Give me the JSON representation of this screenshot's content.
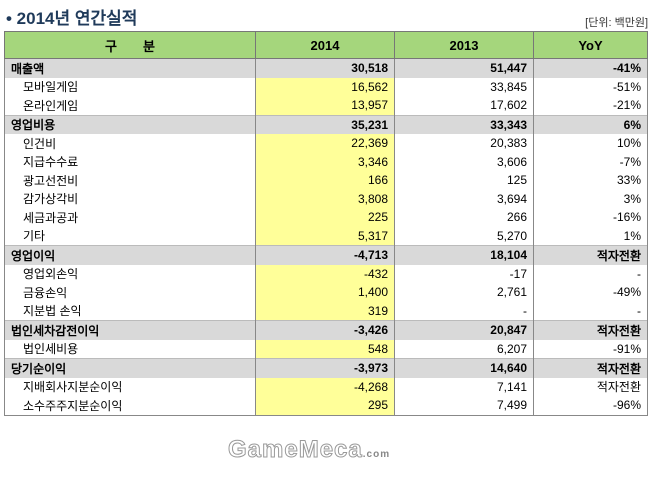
{
  "title": "• 2014년 연간실적",
  "unit": "[단위: 백만원]",
  "headers": [
    "구　　분",
    "2014",
    "2013",
    "YoY"
  ],
  "rows": [
    {
      "label": "매출액",
      "y2014": "30,518",
      "y2013": "51,447",
      "yoy": "-41%",
      "main": true
    },
    {
      "label": "모바일게임",
      "y2014": "16,562",
      "y2013": "33,845",
      "yoy": "-51%"
    },
    {
      "label": "온라인게임",
      "y2014": "13,957",
      "y2013": "17,602",
      "yoy": "-21%"
    },
    {
      "label": "영업비용",
      "y2014": "35,231",
      "y2013": "33,343",
      "yoy": "6%",
      "main": true
    },
    {
      "label": "인건비",
      "y2014": "22,369",
      "y2013": "20,383",
      "yoy": "10%"
    },
    {
      "label": "지급수수료",
      "y2014": "3,346",
      "y2013": "3,606",
      "yoy": "-7%"
    },
    {
      "label": "광고선전비",
      "y2014": "166",
      "y2013": "125",
      "yoy": "33%"
    },
    {
      "label": "감가상각비",
      "y2014": "3,808",
      "y2013": "3,694",
      "yoy": "3%"
    },
    {
      "label": "세금과공과",
      "y2014": "225",
      "y2013": "266",
      "yoy": "-16%"
    },
    {
      "label": "기타",
      "y2014": "5,317",
      "y2013": "5,270",
      "yoy": "1%"
    },
    {
      "label": "영업이익",
      "y2014": "-4,713",
      "y2013": "18,104",
      "yoy": "적자전환",
      "main": true
    },
    {
      "label": "영업외손익",
      "y2014": "-432",
      "y2013": "-17",
      "yoy": "-"
    },
    {
      "label": "금융손익",
      "y2014": "1,400",
      "y2013": "2,761",
      "yoy": "-49%"
    },
    {
      "label": "지분법 손익",
      "y2014": "319",
      "y2013": "-",
      "yoy": "-"
    },
    {
      "label": "법인세차감전이익",
      "y2014": "-3,426",
      "y2013": "20,847",
      "yoy": "적자전환",
      "main": true
    },
    {
      "label": "법인세비용",
      "y2014": "548",
      "y2013": "6,207",
      "yoy": "-91%"
    },
    {
      "label": "당기순이익",
      "y2014": "-3,973",
      "y2013": "14,640",
      "yoy": "적자전환",
      "main": true
    },
    {
      "label": "지배회사지분순이익",
      "y2014": "-4,268",
      "y2013": "7,141",
      "yoy": "적자전환"
    },
    {
      "label": "소수주주지분순이익",
      "y2014": "295",
      "y2013": "7,499",
      "yoy": "-96%"
    }
  ],
  "watermark": "GameMeca",
  "watermark_suffix": ".com"
}
